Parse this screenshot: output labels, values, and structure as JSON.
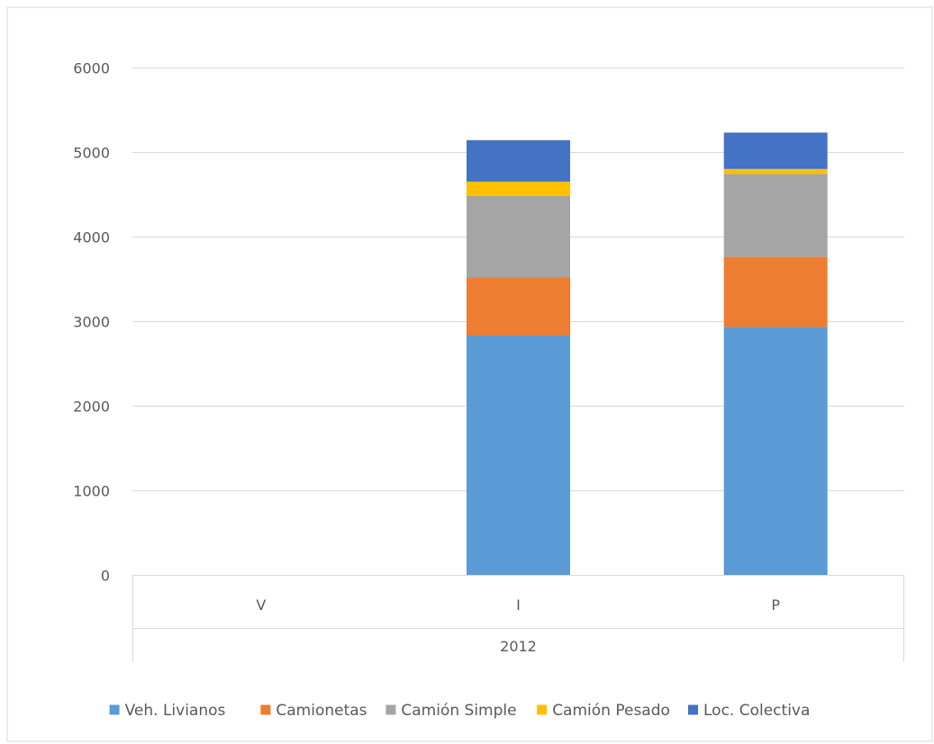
{
  "title_fragment": "",
  "chart_data": {
    "type": "bar",
    "stacked": true,
    "title": "",
    "xlabel": "",
    "ylabel": "",
    "ylim": [
      0,
      6000
    ],
    "yticks": [
      0,
      1000,
      2000,
      3000,
      4000,
      5000,
      6000
    ],
    "ytick_labels": [
      "0",
      "1000",
      "2000",
      "3000",
      "4000",
      "5000",
      "6000"
    ],
    "categories": [
      "V",
      "I",
      "P"
    ],
    "group_label": "2012",
    "grid": true,
    "legend_position": "bottom",
    "series": [
      {
        "name": "Veh. Livianos",
        "color": "#5B9BD5",
        "values": [
          null,
          2830,
          2930
        ]
      },
      {
        "name": "Camionetas",
        "color": "#ED7D31",
        "values": [
          null,
          690,
          830
        ]
      },
      {
        "name": "Camión Simple",
        "color": "#A5A5A5",
        "values": [
          null,
          960,
          980
        ]
      },
      {
        "name": "Camión Pesado",
        "color": "#FFC000",
        "values": [
          null,
          170,
          60
        ]
      },
      {
        "name": "Loc. Colectiva",
        "color": "#4472C4",
        "values": [
          null,
          490,
          430
        ]
      }
    ]
  }
}
